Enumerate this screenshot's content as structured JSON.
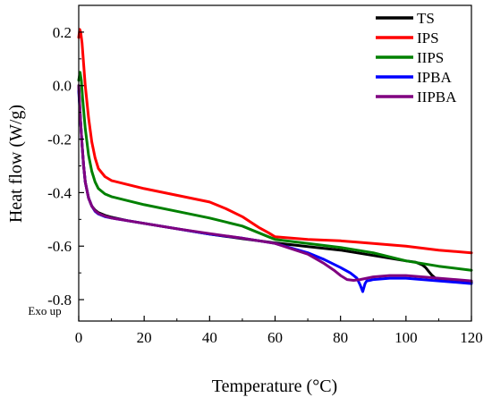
{
  "chart_data": {
    "type": "line",
    "xlabel": "Temperature (°C)",
    "ylabel": "Heat flow (W/g)",
    "annotation": "Exo up",
    "xlim": [
      0,
      120
    ],
    "ylim": [
      -0.88,
      0.3
    ],
    "xticks": [
      0,
      20,
      40,
      60,
      80,
      100,
      120
    ],
    "yticks": [
      0.2,
      0.0,
      -0.2,
      -0.4,
      -0.6,
      -0.8
    ],
    "ytick_labels": [
      "0.2",
      "0.0",
      "-0.2",
      "-0.4",
      "-0.6",
      "-0.8"
    ],
    "grid": false,
    "legend_position": "top-right",
    "series": [
      {
        "name": "TS",
        "color": "#000000",
        "x": [
          0,
          0.5,
          1,
          1.5,
          2,
          3,
          4,
          5,
          6,
          8,
          10,
          15,
          20,
          30,
          40,
          50,
          60,
          70,
          80,
          85,
          90,
          95,
          100,
          103,
          105,
          106,
          107,
          108,
          109,
          110,
          115,
          120
        ],
        "y": [
          0.0,
          -0.12,
          -0.22,
          -0.3,
          -0.36,
          -0.42,
          -0.45,
          -0.465,
          -0.475,
          -0.485,
          -0.492,
          -0.505,
          -0.515,
          -0.535,
          -0.555,
          -0.572,
          -0.588,
          -0.602,
          -0.615,
          -0.625,
          -0.635,
          -0.645,
          -0.655,
          -0.66,
          -0.67,
          -0.68,
          -0.695,
          -0.71,
          -0.72,
          -0.725,
          -0.73,
          -0.735
        ]
      },
      {
        "name": "IPS",
        "color": "#ff0000",
        "x": [
          0,
          0.3,
          0.6,
          1,
          1.5,
          2,
          3,
          4,
          5,
          6,
          8,
          10,
          15,
          20,
          30,
          40,
          45,
          50,
          55,
          58,
          60,
          70,
          80,
          85,
          90,
          100,
          110,
          120
        ],
        "y": [
          0.18,
          0.21,
          0.2,
          0.16,
          0.08,
          0.0,
          -0.12,
          -0.21,
          -0.27,
          -0.31,
          -0.34,
          -0.355,
          -0.37,
          -0.385,
          -0.41,
          -0.435,
          -0.46,
          -0.49,
          -0.53,
          -0.55,
          -0.565,
          -0.575,
          -0.58,
          -0.585,
          -0.59,
          -0.6,
          -0.615,
          -0.625
        ]
      },
      {
        "name": "IIPS",
        "color": "#008000",
        "x": [
          0,
          0.4,
          0.8,
          1.2,
          2,
          3,
          4,
          5,
          6,
          8,
          10,
          15,
          20,
          30,
          40,
          50,
          55,
          58,
          60,
          70,
          80,
          90,
          100,
          110,
          120
        ],
        "y": [
          0.02,
          0.05,
          0.02,
          -0.05,
          -0.16,
          -0.26,
          -0.32,
          -0.36,
          -0.385,
          -0.405,
          -0.415,
          -0.43,
          -0.445,
          -0.47,
          -0.495,
          -0.525,
          -0.55,
          -0.565,
          -0.575,
          -0.59,
          -0.605,
          -0.625,
          -0.655,
          -0.675,
          -0.69
        ]
      },
      {
        "name": "IPBA",
        "color": "#0000ff",
        "x": [
          0,
          0.5,
          1,
          1.5,
          2,
          3,
          4,
          5,
          6,
          8,
          10,
          15,
          20,
          30,
          40,
          50,
          60,
          70,
          75,
          80,
          83,
          84,
          85,
          86,
          86.8,
          87.5,
          88,
          89,
          90,
          95,
          100,
          110,
          120
        ],
        "y": [
          -0.02,
          -0.12,
          -0.22,
          -0.3,
          -0.36,
          -0.42,
          -0.45,
          -0.47,
          -0.48,
          -0.49,
          -0.495,
          -0.505,
          -0.515,
          -0.535,
          -0.555,
          -0.57,
          -0.59,
          -0.625,
          -0.65,
          -0.68,
          -0.7,
          -0.71,
          -0.72,
          -0.745,
          -0.77,
          -0.74,
          -0.73,
          -0.728,
          -0.725,
          -0.72,
          -0.72,
          -0.73,
          -0.74
        ]
      },
      {
        "name": "IIPBA",
        "color": "#800080",
        "x": [
          0,
          0.5,
          1,
          1.5,
          2,
          3,
          4,
          5,
          6,
          8,
          10,
          15,
          20,
          30,
          40,
          50,
          60,
          70,
          75,
          78,
          80,
          82,
          84,
          86,
          88,
          90,
          95,
          100,
          110,
          120
        ],
        "y": [
          0.0,
          -0.12,
          -0.22,
          -0.3,
          -0.36,
          -0.42,
          -0.45,
          -0.468,
          -0.478,
          -0.488,
          -0.495,
          -0.505,
          -0.515,
          -0.535,
          -0.553,
          -0.57,
          -0.59,
          -0.63,
          -0.665,
          -0.69,
          -0.71,
          -0.725,
          -0.728,
          -0.725,
          -0.72,
          -0.715,
          -0.71,
          -0.71,
          -0.72,
          -0.73
        ]
      }
    ]
  }
}
